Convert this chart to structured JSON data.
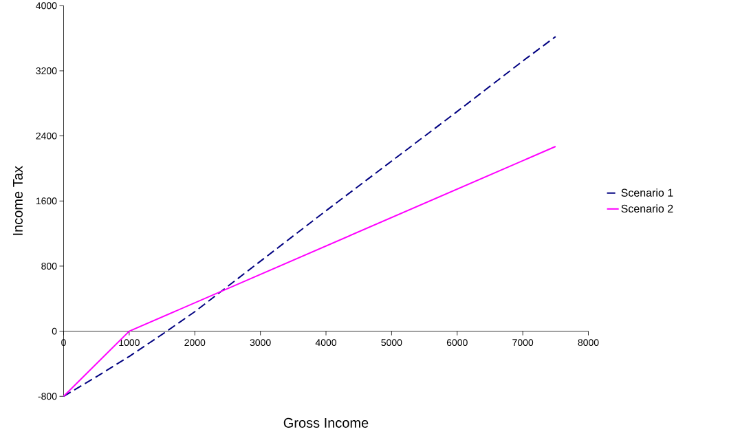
{
  "chart_data": {
    "type": "line",
    "xlabel": "Gross Income",
    "ylabel": "Income Tax",
    "xlim": [
      0,
      8000
    ],
    "xticks": [
      0,
      1000,
      2000,
      3000,
      4000,
      5000,
      6000,
      7000,
      8000
    ],
    "ylim": [
      -800,
      4000
    ],
    "yticks": [
      -800,
      0,
      800,
      1600,
      2400,
      3200,
      4000
    ],
    "legend": "right",
    "marker": "none",
    "series": [
      {
        "name": "Scenario 1",
        "color": "#000080",
        "line_style": "dashed",
        "x": [
          0,
          500,
          1000,
          1500,
          2000,
          2500,
          3000,
          4000,
          5000,
          6000,
          7000,
          7500
        ],
        "values": [
          -800,
          -560,
          -310,
          -40,
          240,
          550,
          860,
          1480,
          2090,
          2700,
          3320,
          3620
        ]
      },
      {
        "name": "Scenario 2",
        "color": "#ff00ff",
        "line_style": "solid",
        "x": [
          0,
          1000,
          7500
        ],
        "values": [
          -800,
          0,
          2270
        ]
      }
    ]
  }
}
